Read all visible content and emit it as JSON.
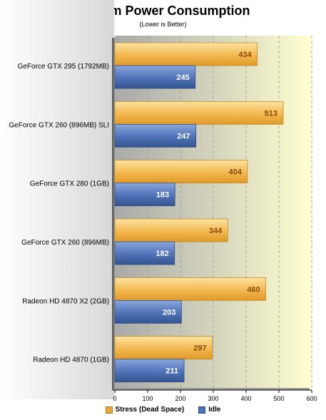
{
  "chart_data": {
    "type": "bar",
    "orientation": "horizontal",
    "title": "System Power Consumption",
    "subtitle": "(Lower is Better)",
    "categories": [
      "GeForce GTX 295 (1792MB)",
      "GeForce GTX 260 (896MB) SLI",
      "GeForce GTX 280 (1GB)",
      "GeForce GTX 260 (896MB)",
      "Radeon HD 4870 X2 (2GB)",
      "Radeon HD 4870 (1GB)"
    ],
    "series": [
      {
        "name": "Stress (Dead Space)",
        "values": [
          434,
          513,
          404,
          344,
          460,
          297
        ],
        "color": "#f2b84f",
        "label_color": "#8a4a08"
      },
      {
        "name": "Idle",
        "values": [
          245,
          247,
          183,
          182,
          203,
          211
        ],
        "color": "#4f72b8",
        "label_color": "#ffffff"
      }
    ],
    "xlim": [
      0,
      600
    ],
    "xticks": [
      0,
      100,
      200,
      300,
      400,
      500,
      600
    ],
    "grid": true,
    "legend_position": "bottom",
    "background_colors": [
      "#a9a9a9",
      "#ffffd0"
    ]
  }
}
